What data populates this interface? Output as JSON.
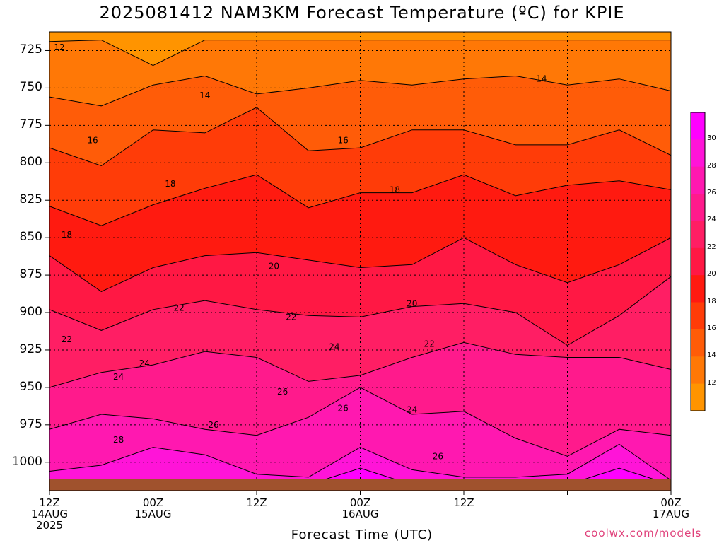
{
  "title": "2025081412 NAM3KM Forecast Temperature (ºC) for KPIE",
  "x_axis": {
    "label": "Forecast Time (UTC)",
    "ticks": [
      {
        "line1": "12Z",
        "line2": "14AUG",
        "line3": "2025"
      },
      {
        "line1": "00Z",
        "line2": "15AUG",
        "line3": ""
      },
      {
        "line1": "12Z",
        "line2": "",
        "line3": ""
      },
      {
        "line1": "00Z",
        "line2": "16AUG",
        "line3": ""
      },
      {
        "line1": "12Z",
        "line2": "",
        "line3": ""
      },
      {
        "line1": "00Z",
        "line2": "17AUG",
        "line3": ""
      }
    ]
  },
  "y_axis": {
    "ticks": [
      "725",
      "750",
      "775",
      "800",
      "825",
      "850",
      "875",
      "900",
      "925",
      "950",
      "975",
      "1000"
    ]
  },
  "colorbar": {
    "labels": [
      "30",
      "28",
      "26",
      "24",
      "22",
      "20",
      "18",
      "16",
      "14",
      "12"
    ],
    "colors": [
      "#ff00ff",
      "#ff14d8",
      "#ff18b0",
      "#ff1a8c",
      "#ff1e64",
      "#ff1844",
      "#ff1a10",
      "#ff3c08",
      "#ff5c08",
      "#ff7806",
      "#ff9400"
    ]
  },
  "credit": "coolwx.com/models",
  "contour_labels": [
    {
      "text": "12",
      "x": "12Z 14AUG",
      "p": 723
    },
    {
      "text": "14",
      "x": "+18h",
      "p": 755
    },
    {
      "text": "14",
      "x": "+57h",
      "p": 744
    },
    {
      "text": "16",
      "x": "+5h",
      "p": 785
    },
    {
      "text": "16",
      "x": "+34h",
      "p": 785
    },
    {
      "text": "18",
      "x": "+2h",
      "p": 848
    },
    {
      "text": "18",
      "x": "+14h",
      "p": 814
    },
    {
      "text": "18",
      "x": "+40h",
      "p": 818
    },
    {
      "text": "20",
      "x": "+26h",
      "p": 869
    },
    {
      "text": "20",
      "x": "+42h",
      "p": 894
    },
    {
      "text": "22",
      "x": "+2h",
      "p": 918
    },
    {
      "text": "22",
      "x": "+15h",
      "p": 897
    },
    {
      "text": "22",
      "x": "+28h",
      "p": 903
    },
    {
      "text": "22",
      "x": "+44h",
      "p": 921
    },
    {
      "text": "24",
      "x": "+8h",
      "p": 943
    },
    {
      "text": "24",
      "x": "+11h",
      "p": 934
    },
    {
      "text": "24",
      "x": "+33h",
      "p": 923
    },
    {
      "text": "24",
      "x": "+42h",
      "p": 965
    },
    {
      "text": "26",
      "x": "+19h",
      "p": 975
    },
    {
      "text": "26",
      "x": "+27h",
      "p": 953
    },
    {
      "text": "26",
      "x": "+34h",
      "p": 964
    },
    {
      "text": "26",
      "x": "+45h",
      "p": 996
    },
    {
      "text": "28",
      "x": "+8h",
      "p": 985
    }
  ],
  "chart_data": {
    "type": "heatmap",
    "title": "2025081412 NAM3KM Forecast Temperature (ºC) for KPIE",
    "xlabel": "Forecast Time (UTC)",
    "ylabel": "",
    "x_categories": [
      "12Z 14AUG 2025",
      "00Z 15AUG",
      "12Z",
      "00Z 16AUG",
      "12Z",
      "00Z 17AUG"
    ],
    "y_pressure_levels": [
      725,
      750,
      775,
      800,
      825,
      850,
      875,
      900,
      925,
      950,
      975,
      1000
    ],
    "y_axis_inverted": true,
    "grid": true,
    "colorbar_placement": "right",
    "contour_levels": [
      12,
      14,
      16,
      18,
      20,
      22,
      24,
      26,
      28,
      30
    ],
    "isotherm_pressure_hPa": {
      "x_hours_from_start": [
        0,
        6,
        12,
        18,
        24,
        30,
        36,
        42,
        48,
        54,
        60,
        66,
        72
      ],
      "12": [
        719,
        718,
        735,
        718,
        718,
        718,
        718,
        718,
        718,
        718,
        718,
        718,
        718
      ],
      "14": [
        756,
        762,
        748,
        742,
        754,
        750,
        745,
        748,
        744,
        742,
        748,
        744,
        752
      ],
      "16": [
        790,
        802,
        778,
        780,
        763,
        792,
        790,
        778,
        778,
        788,
        788,
        778,
        795
      ],
      "18": [
        829,
        842,
        828,
        817,
        808,
        830,
        820,
        820,
        808,
        822,
        815,
        812,
        818
      ],
      "20": [
        862,
        886,
        870,
        862,
        860,
        865,
        870,
        868,
        850,
        868,
        880,
        868,
        850
      ],
      "22": [
        898,
        912,
        898,
        892,
        898,
        902,
        903,
        896,
        894,
        900,
        922,
        902,
        876
      ],
      "24": [
        950,
        940,
        935,
        926,
        930,
        946,
        942,
        930,
        920,
        928,
        930,
        930,
        938
      ],
      "26": [
        978,
        968,
        971,
        978,
        982,
        970,
        950,
        968,
        966,
        984,
        996,
        978,
        982
      ],
      "28": [
        1006,
        1002,
        990,
        995,
        1008,
        1010,
        990,
        1005,
        1010,
        1010,
        1008,
        988,
        1012
      ],
      "30": [
        1015,
        1014,
        1014,
        1015,
        1015,
        1015,
        1004,
        1015,
        1015,
        1015,
        1015,
        1004,
        1015
      ]
    },
    "ground_level_hPa": 1013
  }
}
